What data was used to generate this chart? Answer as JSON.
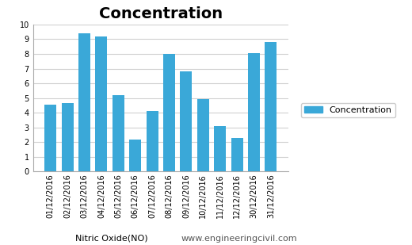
{
  "title": "Concentration",
  "categories": [
    "01/12/2016",
    "02/12/2016",
    "03/12/2016",
    "04/12/2016",
    "05/12/2016",
    "06/12/2016",
    "07/12/2016",
    "08/12/2016",
    "09/12/2016",
    "10/12/2016",
    "11/12/2016",
    "12/12/2016",
    "30/12/2016",
    "31/12/2016"
  ],
  "values": [
    4.55,
    4.65,
    9.4,
    9.2,
    5.2,
    2.15,
    4.1,
    8.0,
    6.8,
    4.9,
    3.1,
    2.3,
    8.05,
    8.8
  ],
  "bar_color": "#3aa8d8",
  "xlabel_left": "Nitric Oxide(NO)",
  "xlabel_right": "www.engineeringcivil.com",
  "legend_label": "Concentration",
  "ylim": [
    0,
    10
  ],
  "yticks": [
    0,
    1,
    2,
    3,
    4,
    5,
    6,
    7,
    8,
    9,
    10
  ],
  "title_fontsize": 14,
  "tick_fontsize": 7,
  "xlabel_fontsize": 8,
  "background_color": "#ffffff",
  "grid_color": "#d0d0d0"
}
